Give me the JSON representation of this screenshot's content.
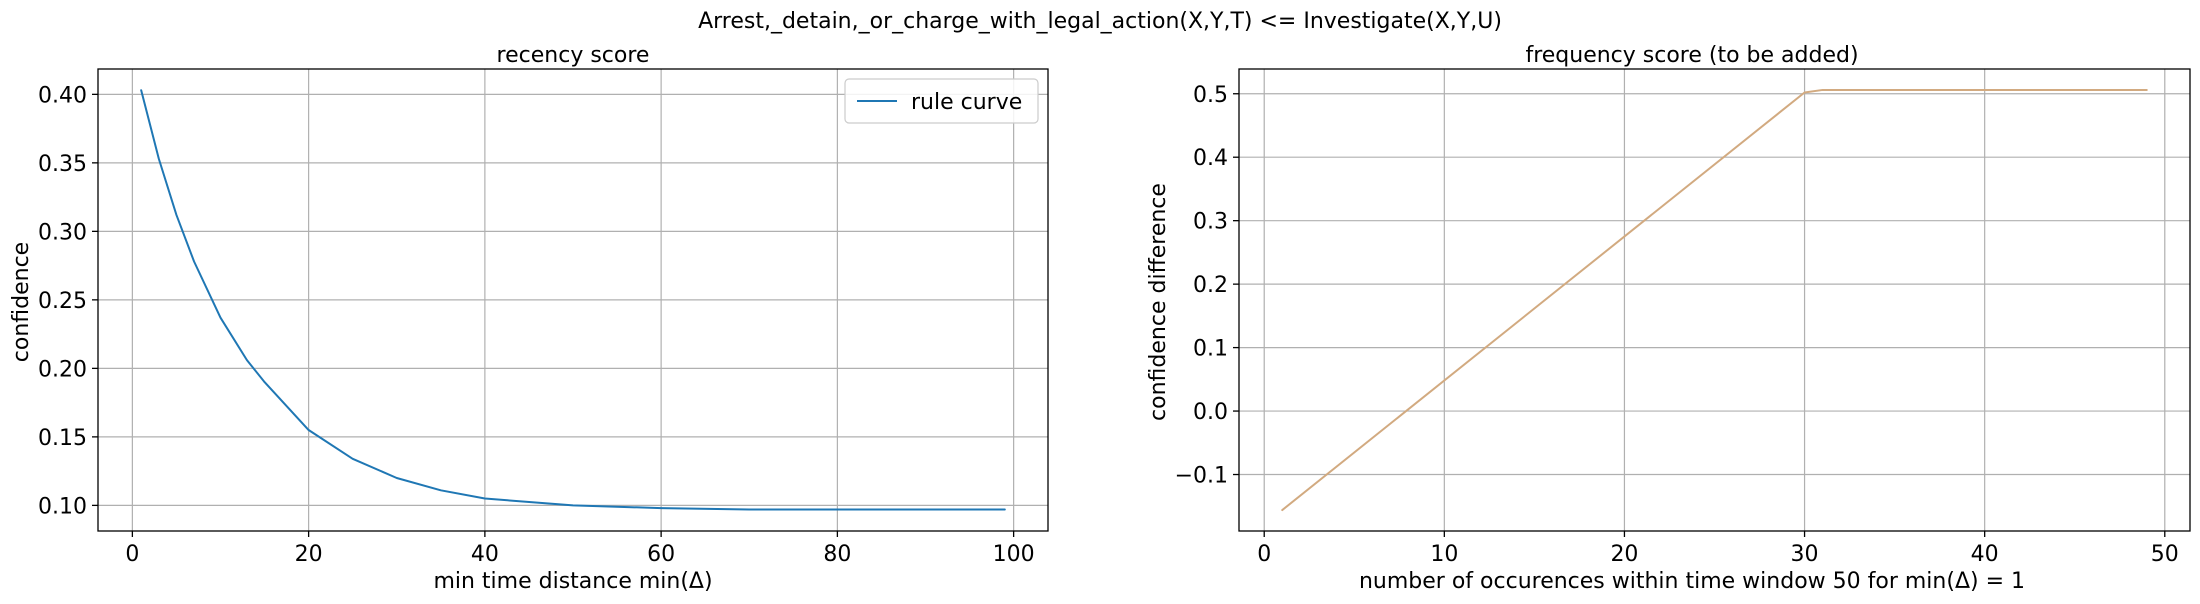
{
  "suptitle": "Arrest,_detain,_or_charge_with_legal_action(X,Y,T) <= Investigate(X,Y,U)",
  "colors": {
    "blue": "#1f77b4",
    "tan": "#d2aa80",
    "grid": "#b0b0b0",
    "axis": "#000000"
  },
  "chart_data": [
    {
      "type": "line",
      "title": "recency score",
      "xlabel": "min time distance min(Δ)",
      "ylabel": "confidence",
      "xlim": [
        -3.9,
        103.9
      ],
      "ylim": [
        0.0813,
        0.4185
      ],
      "xticks": [
        0,
        20,
        40,
        60,
        80,
        100
      ],
      "xtick_labels": [
        "0",
        "20",
        "40",
        "60",
        "80",
        "100"
      ],
      "yticks": [
        0.1,
        0.15,
        0.2,
        0.25,
        0.3,
        0.35,
        0.4
      ],
      "ytick_labels": [
        "0.10",
        "0.15",
        "0.20",
        "0.25",
        "0.30",
        "0.35",
        "0.40"
      ],
      "grid": true,
      "legend": {
        "position": "upper-right",
        "entries": [
          "rule curve"
        ]
      },
      "series": [
        {
          "name": "rule curve",
          "color": "#1f77b4",
          "x": [
            1,
            3,
            5,
            7,
            10,
            13,
            15,
            20,
            25,
            30,
            35,
            40,
            50,
            60,
            70,
            80,
            90,
            99
          ],
          "y": [
            0.403,
            0.353,
            0.312,
            0.278,
            0.237,
            0.206,
            0.19,
            0.155,
            0.134,
            0.12,
            0.111,
            0.105,
            0.1,
            0.098,
            0.097,
            0.097,
            0.097,
            0.097
          ]
        }
      ]
    },
    {
      "type": "line",
      "title": "frequency score (to be added)",
      "xlabel": "number of occurences within time window 50 for min(Δ) = 1",
      "ylabel": "confidence difference",
      "xlim": [
        -1.4,
        51.4
      ],
      "ylim": [
        -0.189,
        0.539
      ],
      "xticks": [
        0,
        10,
        20,
        30,
        40,
        50
      ],
      "xtick_labels": [
        "0",
        "10",
        "20",
        "30",
        "40",
        "50"
      ],
      "yticks": [
        -0.1,
        0.0,
        0.1,
        0.2,
        0.3,
        0.4,
        0.5
      ],
      "ytick_labels": [
        "−0.1",
        "0.0",
        "0.1",
        "0.2",
        "0.3",
        "0.4",
        "0.5"
      ],
      "grid": true,
      "series": [
        {
          "color": "#d2aa80",
          "x": [
            1,
            30,
            31,
            49
          ],
          "y": [
            -0.156,
            0.502,
            0.506,
            0.506
          ]
        }
      ]
    }
  ]
}
